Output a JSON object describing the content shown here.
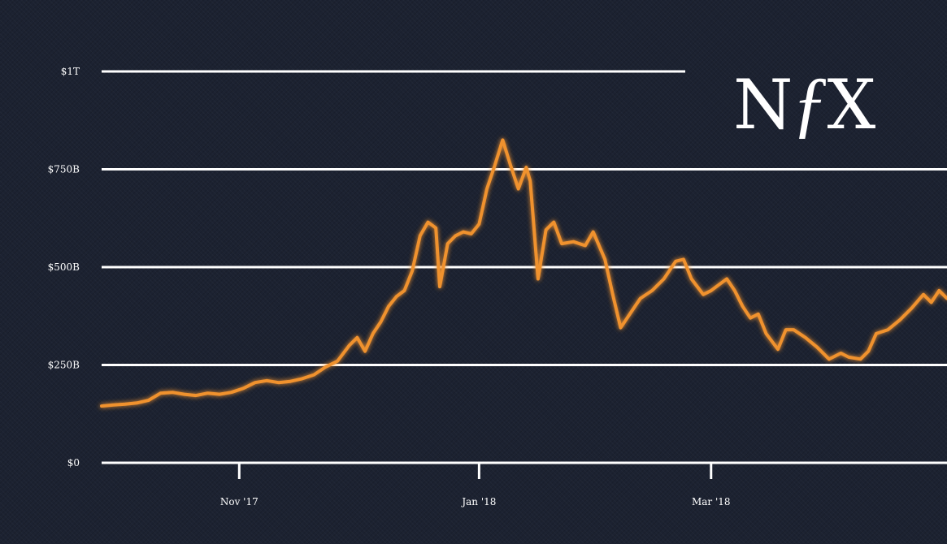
{
  "colors": {
    "background": "#1c2231",
    "grid": "#ffffff",
    "line": "#f0922e",
    "text": "#ffffff"
  },
  "brand": {
    "logo_text": "NƒX",
    "logo_icon": "nfx-logo-icon"
  },
  "chart_data": {
    "type": "line",
    "title": "",
    "xlabel": "",
    "ylabel": "",
    "ylim": [
      0,
      1000
    ],
    "y_unit": "billion USD",
    "y_ticks": [
      0,
      250,
      500,
      750,
      1000
    ],
    "y_tick_labels": [
      "$0",
      "$250B",
      "$500B",
      "$750B",
      "$1T"
    ],
    "xlim": [
      "2017-09-27",
      "2018-04-30"
    ],
    "x_ticks": [
      "2017-11-01",
      "2018-01-01",
      "2018-03-01"
    ],
    "x_tick_labels": [
      "Nov '17",
      "Jan '18",
      "Mar '18"
    ],
    "grid": "horizontal",
    "series": [
      {
        "values": [
          [
            "2017-09-27",
            145
          ],
          [
            "2017-09-30",
            148
          ],
          [
            "2017-10-03",
            150
          ],
          [
            "2017-10-06",
            153
          ],
          [
            "2017-10-09",
            160
          ],
          [
            "2017-10-12",
            178
          ],
          [
            "2017-10-15",
            180
          ],
          [
            "2017-10-18",
            175
          ],
          [
            "2017-10-21",
            172
          ],
          [
            "2017-10-24",
            178
          ],
          [
            "2017-10-27",
            175
          ],
          [
            "2017-10-30",
            180
          ],
          [
            "2017-11-02",
            190
          ],
          [
            "2017-11-05",
            205
          ],
          [
            "2017-11-08",
            210
          ],
          [
            "2017-11-11",
            205
          ],
          [
            "2017-11-14",
            208
          ],
          [
            "2017-11-17",
            215
          ],
          [
            "2017-11-20",
            225
          ],
          [
            "2017-11-23",
            245
          ],
          [
            "2017-11-26",
            260
          ],
          [
            "2017-11-29",
            300
          ],
          [
            "2017-12-01",
            320
          ],
          [
            "2017-12-03",
            285
          ],
          [
            "2017-12-05",
            330
          ],
          [
            "2017-12-07",
            360
          ],
          [
            "2017-12-09",
            400
          ],
          [
            "2017-12-11",
            425
          ],
          [
            "2017-12-13",
            440
          ],
          [
            "2017-12-15",
            490
          ],
          [
            "2017-12-17",
            580
          ],
          [
            "2017-12-19",
            615
          ],
          [
            "2017-12-21",
            600
          ],
          [
            "2017-12-22",
            450
          ],
          [
            "2017-12-24",
            560
          ],
          [
            "2017-12-26",
            580
          ],
          [
            "2017-12-28",
            590
          ],
          [
            "2017-12-30",
            585
          ],
          [
            "2018-01-01",
            610
          ],
          [
            "2018-01-03",
            700
          ],
          [
            "2018-01-05",
            760
          ],
          [
            "2018-01-07",
            825
          ],
          [
            "2018-01-09",
            760
          ],
          [
            "2018-01-11",
            700
          ],
          [
            "2018-01-13",
            755
          ],
          [
            "2018-01-14",
            720
          ],
          [
            "2018-01-16",
            470
          ],
          [
            "2018-01-18",
            595
          ],
          [
            "2018-01-20",
            615
          ],
          [
            "2018-01-22",
            560
          ],
          [
            "2018-01-25",
            565
          ],
          [
            "2018-01-28",
            555
          ],
          [
            "2018-01-30",
            590
          ],
          [
            "2018-02-02",
            520
          ],
          [
            "2018-02-04",
            430
          ],
          [
            "2018-02-06",
            345
          ],
          [
            "2018-02-09",
            390
          ],
          [
            "2018-02-11",
            420
          ],
          [
            "2018-02-14",
            440
          ],
          [
            "2018-02-17",
            470
          ],
          [
            "2018-02-20",
            515
          ],
          [
            "2018-02-22",
            520
          ],
          [
            "2018-02-24",
            470
          ],
          [
            "2018-02-27",
            430
          ],
          [
            "2018-03-01",
            440
          ],
          [
            "2018-03-03",
            455
          ],
          [
            "2018-03-05",
            470
          ],
          [
            "2018-03-07",
            440
          ],
          [
            "2018-03-09",
            400
          ],
          [
            "2018-03-11",
            370
          ],
          [
            "2018-03-13",
            380
          ],
          [
            "2018-03-15",
            330
          ],
          [
            "2018-03-18",
            290
          ],
          [
            "2018-03-20",
            340
          ],
          [
            "2018-03-22",
            340
          ],
          [
            "2018-03-25",
            320
          ],
          [
            "2018-03-28",
            295
          ],
          [
            "2018-03-31",
            265
          ],
          [
            "2018-04-03",
            280
          ],
          [
            "2018-04-05",
            270
          ],
          [
            "2018-04-08",
            265
          ],
          [
            "2018-04-10",
            285
          ],
          [
            "2018-04-12",
            330
          ],
          [
            "2018-04-15",
            340
          ],
          [
            "2018-04-18",
            365
          ],
          [
            "2018-04-21",
            395
          ],
          [
            "2018-04-24",
            430
          ],
          [
            "2018-04-26",
            410
          ],
          [
            "2018-04-28",
            440
          ],
          [
            "2018-04-30",
            420
          ]
        ]
      }
    ]
  }
}
